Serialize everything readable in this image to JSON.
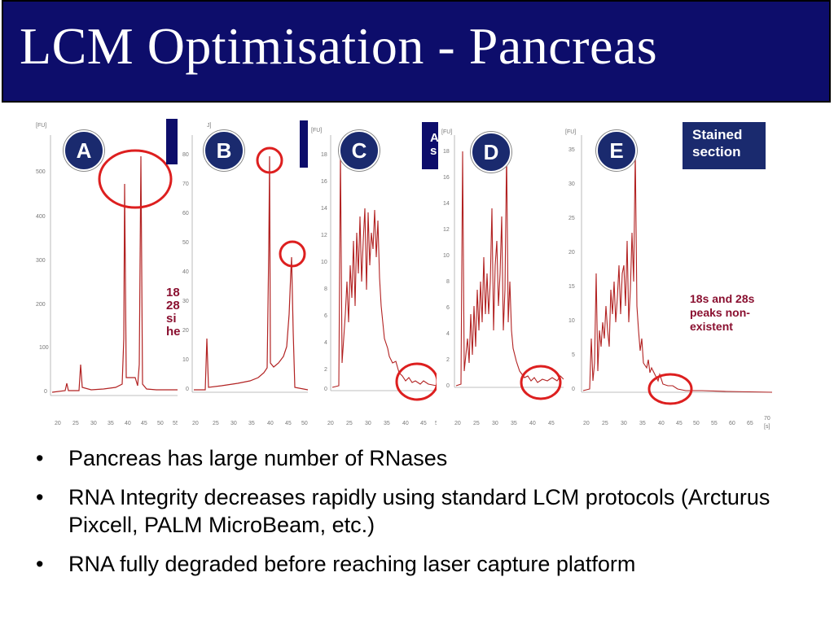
{
  "slide": {
    "title": "LCM Optimisation - Pancreas"
  },
  "figure": {
    "fu_label": "[FU]",
    "panels": [
      {
        "label": "A",
        "y_ticks": [
          "500",
          "400",
          "300",
          "200",
          "100",
          "0"
        ],
        "x_ticks": [
          "20",
          "25",
          "30",
          "35",
          "40",
          "45",
          "50",
          "55"
        ]
      },
      {
        "label": "B",
        "y_ticks": [
          "80",
          "70",
          "60",
          "50",
          "40",
          "30",
          "20",
          "10",
          "0"
        ],
        "x_ticks": [
          "20",
          "25",
          "30",
          "35",
          "40",
          "45",
          "50"
        ]
      },
      {
        "label": "C",
        "y_ticks": [
          "18",
          "16",
          "14",
          "12",
          "10",
          "8",
          "6",
          "4",
          "2",
          "0"
        ],
        "x_ticks": [
          "20",
          "25",
          "30",
          "35",
          "40",
          "45",
          "50"
        ]
      },
      {
        "label": "D",
        "y_ticks": [
          "18",
          "16",
          "14",
          "12",
          "10",
          "8",
          "6",
          "4",
          "2",
          "0"
        ],
        "x_ticks": [
          "20",
          "25",
          "30",
          "35",
          "40",
          "45"
        ]
      },
      {
        "label": "E",
        "y_ticks": [
          "35",
          "30",
          "25",
          "20",
          "15",
          "10",
          "5",
          "0"
        ],
        "x_ticks": [
          "20",
          "25",
          "30",
          "35",
          "40",
          "45",
          "50",
          "55",
          "60",
          "65",
          "70"
        ],
        "x_unit": "[s]"
      }
    ],
    "cut_text_a": [
      "18",
      "28",
      "si",
      "he"
    ],
    "cut_text_c": [
      "A",
      "s"
    ],
    "stained_section": [
      "Stained",
      "section"
    ],
    "note": "18s and 28s peaks non-existent"
  },
  "bullets": [
    "Pancreas has large number of RNases",
    "RNA Integrity decreases rapidly using standard LCM protocols (Arcturus Pixcell, PALM MicroBeam, etc.)",
    "RNA fully degraded before reaching laser capture platform"
  ],
  "colors": {
    "title_bg": "#0d0d6b",
    "trace": "#b22222",
    "circle": "#dd1f1f",
    "badge": "#1a2a6e",
    "note": "#8a1030"
  }
}
